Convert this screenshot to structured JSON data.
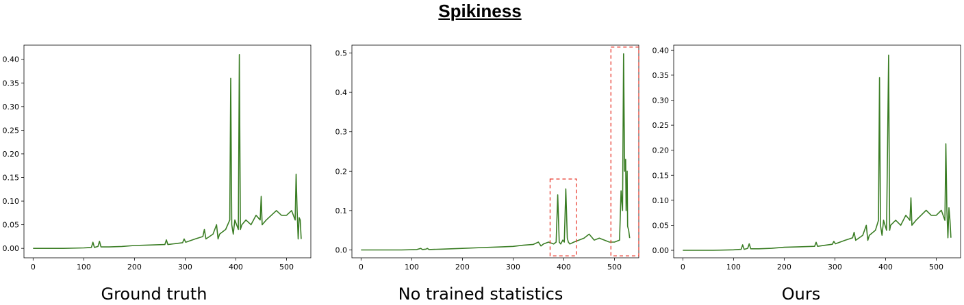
{
  "page_title": "Spikiness",
  "colors": {
    "series": "#3a7d24",
    "highlight": "#e8392d",
    "axis": "#000000"
  },
  "chart_data": [
    {
      "type": "line",
      "title": "",
      "caption": "Ground truth",
      "xlabel": "",
      "ylabel": "",
      "xlim": [
        -18,
        548
      ],
      "ylim": [
        -0.02,
        0.43
      ],
      "xticks": [
        0,
        100,
        200,
        300,
        400,
        500
      ],
      "yticks": [
        0.0,
        0.05,
        0.1,
        0.15,
        0.2,
        0.25,
        0.3,
        0.35,
        0.4
      ],
      "ytick_labels": [
        "0.00",
        "0.05",
        "0.10",
        "0.15",
        "0.20",
        "0.25",
        "0.30",
        "0.35",
        "0.40"
      ],
      "grid": false,
      "series": [
        {
          "x": [
            0,
            60,
            100,
            115,
            118,
            121,
            128,
            131,
            134,
            150,
            175,
            200,
            230,
            260,
            263,
            266,
            280,
            295,
            298,
            301,
            320,
            335,
            338,
            341,
            355,
            362,
            365,
            368,
            380,
            388,
            390,
            392,
            395,
            398,
            405,
            407,
            409,
            412,
            420,
            430,
            440,
            448,
            450,
            452,
            460,
            470,
            480,
            490,
            500,
            510,
            517,
            519,
            521,
            523,
            525,
            527,
            529
          ],
          "y": [
            0.0,
            0.0,
            0.001,
            0.002,
            0.013,
            0.002,
            0.004,
            0.015,
            0.003,
            0.003,
            0.004,
            0.006,
            0.007,
            0.008,
            0.018,
            0.008,
            0.01,
            0.012,
            0.02,
            0.013,
            0.02,
            0.025,
            0.04,
            0.02,
            0.03,
            0.05,
            0.02,
            0.03,
            0.04,
            0.06,
            0.36,
            0.05,
            0.03,
            0.06,
            0.04,
            0.41,
            0.04,
            0.05,
            0.06,
            0.05,
            0.07,
            0.06,
            0.11,
            0.05,
            0.06,
            0.07,
            0.08,
            0.07,
            0.07,
            0.08,
            0.06,
            0.157,
            0.08,
            0.02,
            0.065,
            0.06,
            0.02
          ]
        }
      ],
      "highlight_boxes": []
    },
    {
      "type": "line",
      "title": "",
      "caption": "No trained statistics",
      "xlabel": "",
      "ylabel": "",
      "xlim": [
        -18,
        548
      ],
      "ylim": [
        -0.02,
        0.52
      ],
      "xticks": [
        0,
        100,
        200,
        300,
        400,
        500
      ],
      "yticks": [
        0.0,
        0.1,
        0.2,
        0.3,
        0.4,
        0.5
      ],
      "ytick_labels": [
        "0.0",
        "0.1",
        "0.2",
        "0.3",
        "0.4",
        "0.5"
      ],
      "grid": false,
      "series": [
        {
          "x": [
            0,
            80,
            110,
            118,
            121,
            128,
            131,
            134,
            160,
            200,
            240,
            280,
            300,
            320,
            340,
            350,
            355,
            360,
            370,
            380,
            385,
            388,
            391,
            394,
            398,
            401,
            404,
            407,
            409,
            412,
            420,
            430,
            440,
            450,
            460,
            470,
            480,
            490,
            500,
            510,
            513,
            516,
            518,
            520,
            522,
            523,
            525,
            526,
            528,
            530
          ],
          "y": [
            0.0,
            0.0,
            0.001,
            0.004,
            0.001,
            0.002,
            0.004,
            0.001,
            0.002,
            0.004,
            0.006,
            0.008,
            0.009,
            0.012,
            0.014,
            0.02,
            0.01,
            0.015,
            0.02,
            0.015,
            0.02,
            0.14,
            0.02,
            0.015,
            0.025,
            0.02,
            0.155,
            0.03,
            0.02,
            0.015,
            0.02,
            0.025,
            0.03,
            0.04,
            0.025,
            0.03,
            0.025,
            0.02,
            0.02,
            0.025,
            0.15,
            0.1,
            0.498,
            0.2,
            0.23,
            0.1,
            0.2,
            0.06,
            0.05,
            0.03
          ]
        }
      ],
      "highlight_boxes": [
        {
          "x0": 373,
          "x1": 425,
          "y0": -0.015,
          "y1": 0.18
        },
        {
          "x0": 493,
          "x1": 548,
          "y0": -0.015,
          "y1": 0.515
        }
      ]
    },
    {
      "type": "line",
      "title": "",
      "caption": "Ours",
      "xlabel": "",
      "ylabel": "",
      "xlim": [
        -18,
        548
      ],
      "ylim": [
        -0.015,
        0.41
      ],
      "xticks": [
        0,
        100,
        200,
        300,
        400,
        500
      ],
      "yticks": [
        0.0,
        0.05,
        0.1,
        0.15,
        0.2,
        0.25,
        0.3,
        0.35,
        0.4
      ],
      "ytick_labels": [
        "0.00",
        "0.05",
        "0.10",
        "0.15",
        "0.20",
        "0.25",
        "0.30",
        "0.35",
        "0.40"
      ],
      "grid": false,
      "series": [
        {
          "x": [
            0,
            60,
            100,
            115,
            118,
            121,
            128,
            131,
            134,
            150,
            175,
            200,
            230,
            260,
            263,
            266,
            280,
            295,
            298,
            301,
            320,
            335,
            338,
            341,
            355,
            362,
            365,
            368,
            380,
            386,
            388,
            390,
            393,
            396,
            402,
            406,
            408,
            410,
            420,
            430,
            440,
            448,
            450,
            452,
            460,
            470,
            480,
            490,
            500,
            510,
            517,
            519,
            521,
            523,
            525,
            527,
            529
          ],
          "y": [
            0.0,
            0.0,
            0.001,
            0.002,
            0.011,
            0.002,
            0.004,
            0.013,
            0.003,
            0.003,
            0.004,
            0.006,
            0.007,
            0.008,
            0.016,
            0.008,
            0.01,
            0.012,
            0.018,
            0.013,
            0.02,
            0.025,
            0.036,
            0.02,
            0.03,
            0.05,
            0.02,
            0.03,
            0.04,
            0.06,
            0.345,
            0.05,
            0.03,
            0.06,
            0.04,
            0.39,
            0.04,
            0.05,
            0.06,
            0.05,
            0.07,
            0.06,
            0.105,
            0.05,
            0.06,
            0.07,
            0.08,
            0.07,
            0.07,
            0.08,
            0.06,
            0.213,
            0.08,
            0.025,
            0.085,
            0.06,
            0.025
          ]
        }
      ],
      "highlight_boxes": []
    }
  ]
}
